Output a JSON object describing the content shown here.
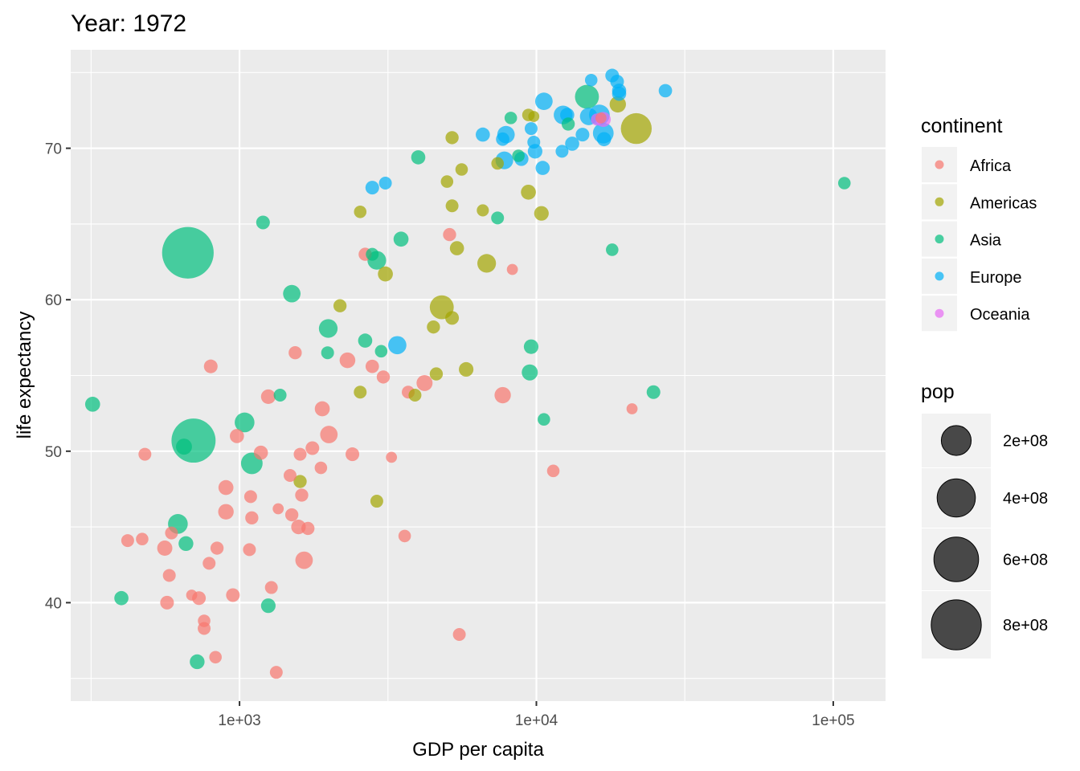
{
  "chart_data": {
    "type": "scatter",
    "title": "Year: 1972",
    "xlabel": "GDP per capita",
    "ylabel": "life expectancy",
    "xscale": "log10",
    "xlim": [
      270,
      150000
    ],
    "ylim": [
      33.5,
      76.5
    ],
    "xticks": [
      {
        "value": 1000,
        "label": "1e+03"
      },
      {
        "value": 10000,
        "label": "1e+04"
      },
      {
        "value": 100000,
        "label": "1e+05"
      }
    ],
    "yticks": [
      {
        "value": 40,
        "label": "40"
      },
      {
        "value": 50,
        "label": "50"
      },
      {
        "value": 60,
        "label": "60"
      },
      {
        "value": 70,
        "label": "70"
      }
    ],
    "grid": true,
    "legend_continent": {
      "title": "continent",
      "entries": [
        {
          "name": "Africa",
          "color": "#F8766D"
        },
        {
          "name": "Americas",
          "color": "#A3A500"
        },
        {
          "name": "Asia",
          "color": "#00BF7D"
        },
        {
          "name": "Europe",
          "color": "#00B0F6"
        },
        {
          "name": "Oceania",
          "color": "#E76BF3"
        }
      ]
    },
    "legend_pop": {
      "title": "pop",
      "entries": [
        {
          "value": 200000000,
          "label": "2e+08"
        },
        {
          "value": 400000000,
          "label": "4e+08"
        },
        {
          "value": 600000000,
          "label": "6e+08"
        },
        {
          "value": 800000000,
          "label": "8e+08"
        }
      ]
    },
    "series": [
      {
        "name": "Africa",
        "color": "#F8766D",
        "points": [
          [
            2310,
            56.0,
            18
          ],
          [
            16500,
            72.0,
            1
          ],
          [
            5100,
            64.3,
            6
          ],
          [
            2650,
            63.0,
            6
          ],
          [
            1760,
            50.2,
            8
          ],
          [
            8300,
            62.0,
            1
          ],
          [
            1540,
            56.5,
            6
          ],
          [
            4200,
            54.5,
            20
          ],
          [
            7700,
            53.7,
            22
          ],
          [
            21000,
            52.8,
            1
          ],
          [
            2000,
            51.1,
            30
          ],
          [
            1180,
            49.9,
            10
          ],
          [
            1480,
            48.4,
            5
          ],
          [
            3250,
            49.6,
            1
          ],
          [
            980,
            51.0,
            10
          ],
          [
            800,
            55.6,
            8
          ],
          [
            1250,
            53.6,
            12
          ],
          [
            950,
            40.5,
            8
          ],
          [
            420,
            44.1,
            5
          ],
          [
            470,
            44.2,
            4
          ],
          [
            560,
            43.6,
            15
          ],
          [
            590,
            44.6,
            5
          ],
          [
            580,
            41.8,
            5
          ],
          [
            570,
            40.0,
            8
          ],
          [
            690,
            40.5,
            1
          ],
          [
            760,
            38.8,
            4
          ],
          [
            760,
            38.3,
            5
          ],
          [
            830,
            36.4,
            4
          ],
          [
            1330,
            35.4,
            5
          ],
          [
            730,
            40.3,
            8
          ],
          [
            840,
            43.6,
            6
          ],
          [
            900,
            46.0,
            17
          ],
          [
            900,
            47.6,
            14
          ],
          [
            1090,
            47.0,
            5
          ],
          [
            1100,
            45.6,
            6
          ],
          [
            1080,
            43.5,
            5
          ],
          [
            790,
            42.6,
            5
          ],
          [
            1650,
            42.8,
            30
          ],
          [
            1500,
            45.8,
            6
          ],
          [
            1580,
            45.0,
            12
          ],
          [
            1700,
            44.9,
            6
          ],
          [
            1620,
            47.1,
            6
          ],
          [
            1600,
            49.8,
            5
          ],
          [
            1880,
            48.9,
            4
          ],
          [
            2400,
            49.8,
            8
          ],
          [
            1280,
            41.0,
            5
          ],
          [
            11400,
            48.7,
            4
          ],
          [
            3600,
            44.4,
            4
          ],
          [
            5500,
            37.9,
            5
          ],
          [
            2800,
            55.6,
            7
          ],
          [
            3050,
            54.9,
            6
          ],
          [
            3700,
            53.9,
            5
          ],
          [
            1350,
            46.2,
            1
          ],
          [
            480,
            49.8,
            5
          ],
          [
            1900,
            52.8,
            14
          ]
        ]
      },
      {
        "name": "Americas",
        "color": "#A3A500",
        "points": [
          [
            9400,
            72.2,
            4
          ],
          [
            5200,
            70.7,
            6
          ],
          [
            9800,
            72.1,
            1
          ],
          [
            5600,
            68.6,
            4
          ],
          [
            6600,
            65.9,
            3
          ],
          [
            2550,
            65.8,
            4
          ],
          [
            7400,
            69.0,
            4
          ],
          [
            5000,
            67.8,
            4
          ],
          [
            5200,
            66.2,
            5
          ],
          [
            10400,
            65.7,
            12
          ],
          [
            9400,
            67.1,
            14
          ],
          [
            21700,
            71.3,
            220
          ],
          [
            18800,
            72.9,
            22
          ],
          [
            6800,
            62.4,
            40
          ],
          [
            3100,
            61.7,
            14
          ],
          [
            5400,
            63.4,
            10
          ],
          [
            2180,
            59.6,
            6
          ],
          [
            4800,
            59.5,
            100
          ],
          [
            4500,
            58.2,
            6
          ],
          [
            5200,
            58.8,
            8
          ],
          [
            5800,
            55.4,
            12
          ],
          [
            4600,
            55.1,
            6
          ],
          [
            2550,
            53.9,
            5
          ],
          [
            3900,
            53.7,
            5
          ],
          [
            1600,
            48.0,
            6
          ],
          [
            2900,
            46.7,
            5
          ]
        ]
      },
      {
        "name": "Asia",
        "color": "#00BF7D",
        "points": [
          [
            14800,
            73.4,
            100
          ],
          [
            8200,
            72.0,
            4
          ],
          [
            12800,
            71.6,
            6
          ],
          [
            7400,
            65.4,
            5
          ],
          [
            4000,
            69.4,
            10
          ],
          [
            1200,
            65.1,
            8
          ],
          [
            670,
            63.1,
            860
          ],
          [
            2900,
            62.6,
            40
          ],
          [
            3500,
            64.0,
            14
          ],
          [
            2800,
            63.0,
            5
          ],
          [
            1500,
            60.4,
            30
          ],
          [
            1990,
            58.1,
            40
          ],
          [
            2650,
            57.3,
            10
          ],
          [
            1980,
            56.5,
            5
          ],
          [
            3000,
            56.6,
            4
          ],
          [
            9600,
            56.9,
            12
          ],
          [
            9500,
            55.2,
            20
          ],
          [
            1370,
            53.7,
            5
          ],
          [
            1040,
            51.9,
            50
          ],
          [
            1100,
            49.2,
            70
          ],
          [
            700,
            50.7,
            580
          ],
          [
            650,
            50.3,
            20
          ],
          [
            320,
            53.1,
            14
          ],
          [
            620,
            45.2,
            50
          ],
          [
            660,
            43.9,
            13
          ],
          [
            400,
            40.3,
            10
          ],
          [
            720,
            36.1,
            13
          ],
          [
            1250,
            39.8,
            12
          ],
          [
            10600,
            52.1,
            4
          ],
          [
            24800,
            53.9,
            8
          ],
          [
            109000,
            67.7,
            4
          ],
          [
            18000,
            63.3,
            4
          ],
          [
            8700,
            69.5,
            4
          ]
        ]
      },
      {
        "name": "Europe",
        "color": "#00B0F6",
        "points": [
          [
            15300,
            74.5,
            4
          ],
          [
            18000,
            74.8,
            8
          ],
          [
            18700,
            74.4,
            8
          ],
          [
            19000,
            73.6,
            10
          ],
          [
            19000,
            73.8,
            10
          ],
          [
            27200,
            73.8,
            7
          ],
          [
            10600,
            73.1,
            30
          ],
          [
            12300,
            72.2,
            40
          ],
          [
            12700,
            72.2,
            10
          ],
          [
            16300,
            72.2,
            60
          ],
          [
            16800,
            71.0,
            60
          ],
          [
            15000,
            72.1,
            30
          ],
          [
            16900,
            70.6,
            10
          ],
          [
            14300,
            70.9,
            8
          ],
          [
            13200,
            70.3,
            10
          ],
          [
            12200,
            69.8,
            5
          ],
          [
            9600,
            71.3,
            5
          ],
          [
            9900,
            69.8,
            12
          ],
          [
            9800,
            70.4,
            5
          ],
          [
            7900,
            70.9,
            30
          ],
          [
            7700,
            70.6,
            7
          ],
          [
            6600,
            70.9,
            10
          ],
          [
            10500,
            68.7,
            10
          ],
          [
            8900,
            69.3,
            10
          ],
          [
            7800,
            69.2,
            32
          ],
          [
            3100,
            67.7,
            5
          ],
          [
            2800,
            67.4,
            8
          ],
          [
            3400,
            57.0,
            36
          ]
        ]
      },
      {
        "name": "Oceania",
        "color": "#E76BF3",
        "points": [
          [
            16800,
            71.9,
            14
          ],
          [
            16000,
            71.9,
            3
          ]
        ]
      }
    ]
  }
}
